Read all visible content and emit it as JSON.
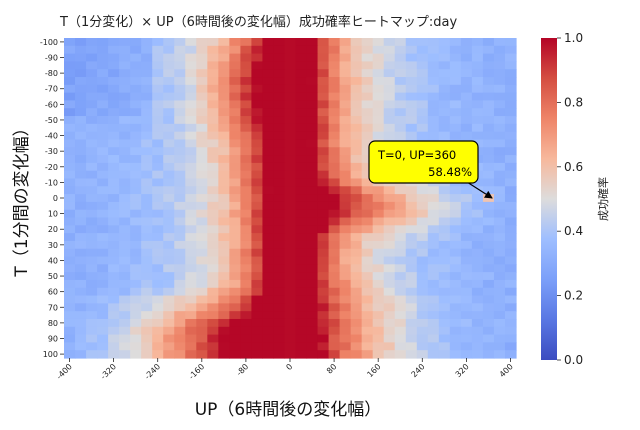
{
  "chart_data": {
    "type": "heatmap",
    "title": "T（1分変化）× UP（6時間後の変化幅）成功確率ヒートマップ:day",
    "xlabel": "UP（6時間後の変化幅）",
    "ylabel": "T（1分間の変化幅）",
    "colorbar_label": "成功確率",
    "colormap": "coolwarm",
    "vmin": 0.0,
    "vmax": 1.0,
    "colorbar_ticks": [
      "0.0",
      "0.2",
      "0.4",
      "0.6",
      "0.8",
      "1.0"
    ],
    "x_range": [
      -400,
      400
    ],
    "x_step": 20,
    "x_ticks": [
      "-400",
      "-320",
      "-240",
      "-160",
      "-80",
      "0",
      "80",
      "160",
      "240",
      "320",
      "400"
    ],
    "y_range": [
      -100,
      100
    ],
    "y_step": 5,
    "y_ticks": [
      "-100",
      "-90",
      "-80",
      "-70",
      "-60",
      "-50",
      "-40",
      "-30",
      "-20",
      "-10",
      "0",
      "10",
      "20",
      "30",
      "40",
      "50",
      "60",
      "70",
      "80",
      "90",
      "100"
    ],
    "annotation": {
      "lines": [
        "T=0, UP=360",
        "58.48%"
      ],
      "T": 0,
      "UP": 360,
      "value": 0.5848,
      "box_color": "#ffff00"
    }
  }
}
